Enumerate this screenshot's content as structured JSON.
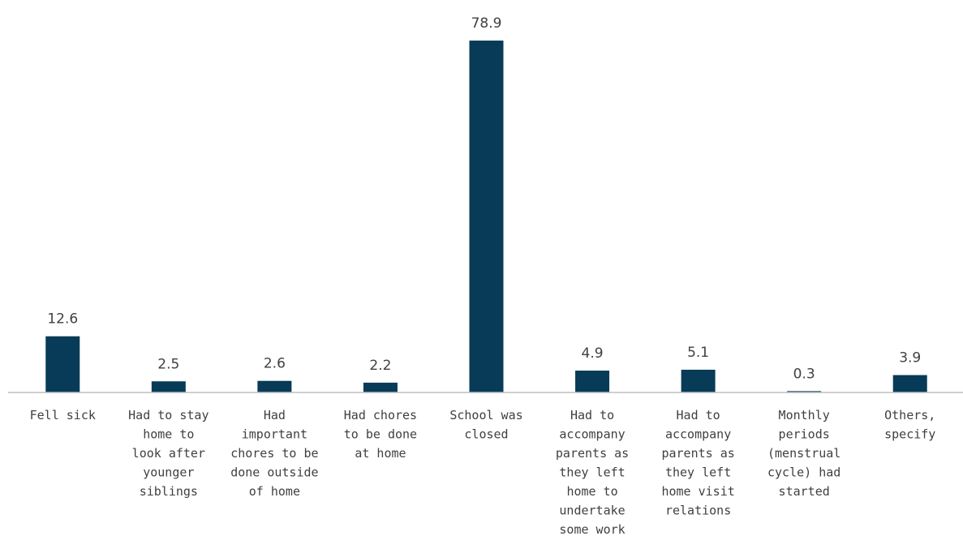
{
  "chart_data": {
    "type": "bar",
    "title": "",
    "xlabel": "",
    "ylabel": "",
    "ylim": [
      0,
      80
    ],
    "grid": false,
    "legend": "none",
    "bar_color": "#073b57",
    "categories": [
      [
        "Fell sick"
      ],
      [
        "Had to stay",
        "home to",
        "look after",
        "younger",
        "siblings"
      ],
      [
        "Had",
        "important",
        "chores to be",
        "done outside",
        "of home"
      ],
      [
        "Had chores",
        "to be done",
        "at home"
      ],
      [
        "School was",
        "closed"
      ],
      [
        "Had to",
        "accompany",
        "parents as",
        "they left",
        "home to",
        "undertake",
        "some work"
      ],
      [
        "Had to",
        "accompany",
        "parents as",
        "they left",
        "home visit",
        "relations"
      ],
      [
        "Monthly",
        "periods",
        "(menstrual",
        "cycle) had",
        "started"
      ],
      [
        "Others,",
        "specify"
      ]
    ],
    "values": [
      12.6,
      2.5,
      2.6,
      2.2,
      78.9,
      4.9,
      5.1,
      0.3,
      3.9
    ],
    "value_labels": [
      "12.6",
      "2.5",
      "2.6",
      "2.2",
      "78.9",
      "4.9",
      "5.1",
      "0.3",
      "3.9"
    ]
  }
}
